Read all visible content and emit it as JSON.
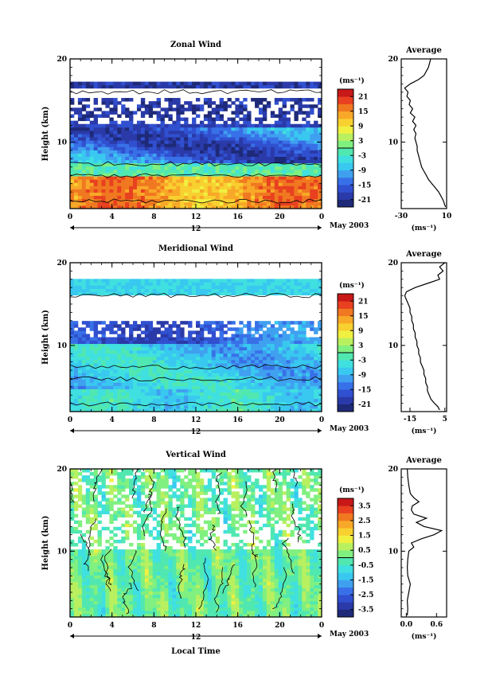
{
  "chart_data": [
    {
      "type": "heatmap",
      "title": "Zonal Wind",
      "ylabel": "Height (km)",
      "xlabel": "",
      "y_ticks": [
        "20",
        "10"
      ],
      "ylim": [
        2,
        20
      ],
      "x_ticks": [
        "0",
        "4",
        "8",
        "12",
        "16",
        "20",
        "0"
      ],
      "xlim": [
        0,
        24
      ],
      "date_label": "12",
      "date_caption": "May 2003",
      "colorbar": {
        "unit": "(ms⁻¹)",
        "ticks": [
          "21",
          "15",
          "9",
          "3",
          "-3",
          "-9",
          "-15",
          "-21"
        ],
        "range": [
          -24,
          24
        ],
        "colors": [
          "#1e2a78",
          "#2a3aa8",
          "#3050d0",
          "#3870e8",
          "#40a0f0",
          "#38c8f0",
          "#40e0e0",
          "#50e8b0",
          "#80f080",
          "#b8f060",
          "#f0f040",
          "#f8d030",
          "#f8a828",
          "#f07820",
          "#e84020",
          "#c81818"
        ]
      },
      "profile": {
        "title": "Average",
        "unit": "(ms⁻¹)",
        "x_ticks": [
          "-30",
          "10"
        ],
        "xlim": [
          -30,
          10
        ],
        "y_ticks": [
          "20",
          "10"
        ],
        "height_km": [
          2.2,
          2.6,
          3,
          3.5,
          4,
          4.5,
          5,
          5.5,
          6,
          6.5,
          7,
          7.5,
          8,
          8.5,
          9,
          9.5,
          10,
          10.5,
          11,
          11.5,
          12,
          12.5,
          13,
          13.5,
          14,
          14.5,
          15,
          15.5,
          16,
          16.5,
          17,
          17.5,
          18,
          18.5,
          19,
          19.5,
          20
        ],
        "values": [
          9,
          8,
          7,
          5,
          3,
          0,
          -3,
          -6,
          -8,
          -10,
          -12,
          -13,
          -14,
          -15,
          -16,
          -16,
          -17,
          -18,
          -17,
          -19,
          -17,
          -20,
          -18,
          -22,
          -20,
          -23,
          -22,
          -25,
          -24,
          -27,
          -22,
          -15,
          -10,
          -8,
          -6,
          -5,
          -4
        ]
      }
    },
    {
      "type": "heatmap",
      "title": "Meridional Wind",
      "ylabel": "Height (km)",
      "xlabel": "",
      "y_ticks": [
        "20",
        "10"
      ],
      "ylim": [
        2,
        20
      ],
      "x_ticks": [
        "0",
        "4",
        "8",
        "12",
        "16",
        "20",
        "0"
      ],
      "xlim": [
        0,
        24
      ],
      "date_label": "12",
      "date_caption": "May 2003",
      "colorbar": {
        "unit": "(ms⁻¹)",
        "ticks": [
          "21",
          "15",
          "9",
          "3",
          "-3",
          "-9",
          "-15",
          "-21"
        ],
        "range": [
          -24,
          24
        ],
        "colors": [
          "#1e2a78",
          "#2a3aa8",
          "#3050d0",
          "#3870e8",
          "#40a0f0",
          "#38c8f0",
          "#40e0e0",
          "#50e8b0",
          "#80f080",
          "#b8f060",
          "#f0f040",
          "#f8d030",
          "#f8a828",
          "#f07820",
          "#e84020",
          "#c81818"
        ]
      },
      "profile": {
        "title": "Average",
        "unit": "(ms⁻¹)",
        "x_ticks": [
          "-15",
          "5"
        ],
        "xlim": [
          -20,
          6
        ],
        "y_ticks": [
          "20",
          "10"
        ],
        "height_km": [
          2.2,
          2.6,
          3,
          3.5,
          4,
          4.5,
          5,
          5.5,
          6,
          6.5,
          7,
          7.5,
          8,
          8.5,
          9,
          9.5,
          10,
          10.5,
          11,
          11.5,
          12,
          12.5,
          13,
          13.5,
          14,
          14.5,
          15,
          15.5,
          16,
          16.5,
          17,
          17.5,
          18,
          18.5,
          19,
          19.5,
          20
        ],
        "values": [
          2,
          1,
          -1,
          -3,
          -4,
          -5,
          -5,
          -6,
          -6,
          -7,
          -7,
          -8,
          -9,
          -9,
          -10,
          -10,
          -11,
          -11,
          -12,
          -12,
          -13,
          -13,
          -14,
          -14,
          -15,
          -15,
          -16,
          -17,
          -18,
          -17,
          -12,
          -5,
          2,
          1,
          4,
          2,
          5
        ]
      }
    },
    {
      "type": "heatmap",
      "title": "Vertical Wind",
      "ylabel": "Height (km)",
      "xlabel": "Local Time",
      "y_ticks": [
        "20",
        "10"
      ],
      "ylim": [
        2,
        20
      ],
      "x_ticks": [
        "0",
        "4",
        "8",
        "12",
        "16",
        "20",
        "0"
      ],
      "xlim": [
        0,
        24
      ],
      "date_label": "12",
      "date_caption": "May 2003",
      "colorbar": {
        "unit": "(ms⁻¹)",
        "ticks": [
          "3.5",
          "2.5",
          "1.5",
          "0.5",
          "-0.5",
          "-1.5",
          "-2.5",
          "-3.5"
        ],
        "range": [
          -4,
          4
        ],
        "colors": [
          "#1e2a78",
          "#2a3aa8",
          "#3050d0",
          "#3870e8",
          "#40a0f0",
          "#38c8f0",
          "#40e0e0",
          "#50e8b0",
          "#80f080",
          "#b8f060",
          "#f0f040",
          "#f8d030",
          "#f8a828",
          "#f07820",
          "#e84020",
          "#c81818"
        ]
      },
      "profile": {
        "title": "Average",
        "unit": "(ms⁻¹)",
        "x_ticks": [
          "0.0",
          "0.6"
        ],
        "xlim": [
          -0.1,
          0.8
        ],
        "y_ticks": [
          "20",
          "10"
        ],
        "height_km": [
          2.2,
          3,
          4,
          5,
          6,
          7,
          8,
          9,
          10,
          10.5,
          11,
          11.5,
          12,
          12.5,
          13,
          13.5,
          14,
          14.5,
          15,
          15.5,
          16,
          16.5,
          17,
          18,
          19,
          20
        ],
        "values": [
          0.02,
          0.03,
          0.02,
          0.05,
          0.08,
          0.03,
          0.02,
          0.03,
          0.05,
          0.15,
          0.1,
          0.3,
          0.55,
          0.7,
          0.35,
          0.2,
          0.4,
          0.15,
          0.1,
          0.12,
          0.25,
          0.15,
          0.08,
          0.05,
          0.03,
          0.02
        ]
      }
    }
  ]
}
